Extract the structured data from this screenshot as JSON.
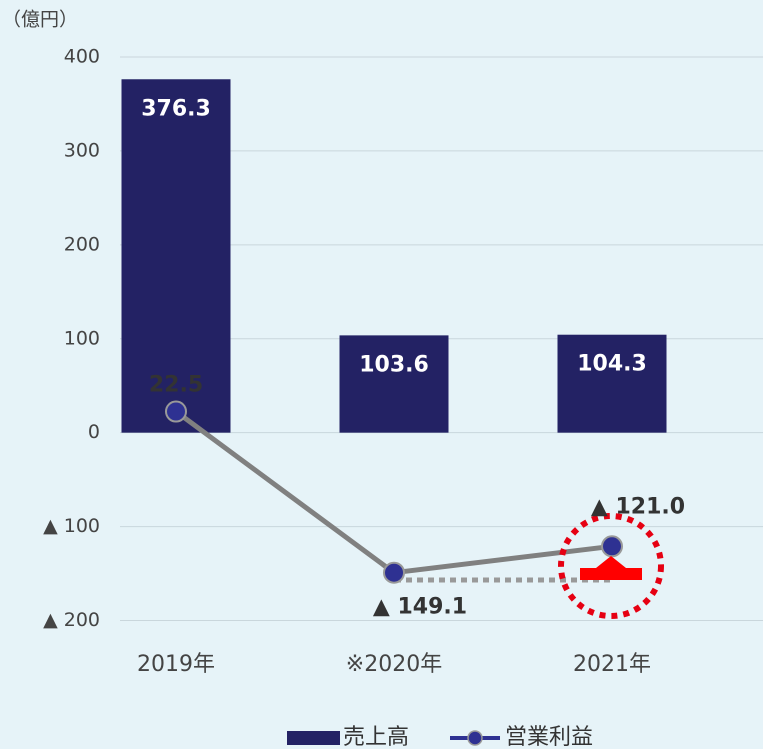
{
  "chart_data": {
    "type": "bar_line",
    "unit_label": "（億円）",
    "categories": [
      "2019年",
      "※2020年",
      "2021年"
    ],
    "series": [
      {
        "name": "売上高",
        "color": "#232264",
        "type": "bar",
        "values": [
          376.3,
          103.6,
          104.3
        ]
      },
      {
        "name": "営業利益",
        "color": "#808080",
        "marker_color": "#2e3192",
        "type": "line",
        "values": [
          22.5,
          -149.1,
          -121.0
        ],
        "value_labels": [
          "22.5",
          "▲ 149.1",
          "▲ 121.0"
        ]
      }
    ],
    "ylim": [
      -200,
      400
    ],
    "yticks": [
      400,
      300,
      200,
      100,
      0,
      {
        "value": -100,
        "label": "▲ 100"
      },
      {
        "value": -200,
        "label": "▲ 200"
      }
    ],
    "grid": true,
    "legend": "bottom"
  }
}
